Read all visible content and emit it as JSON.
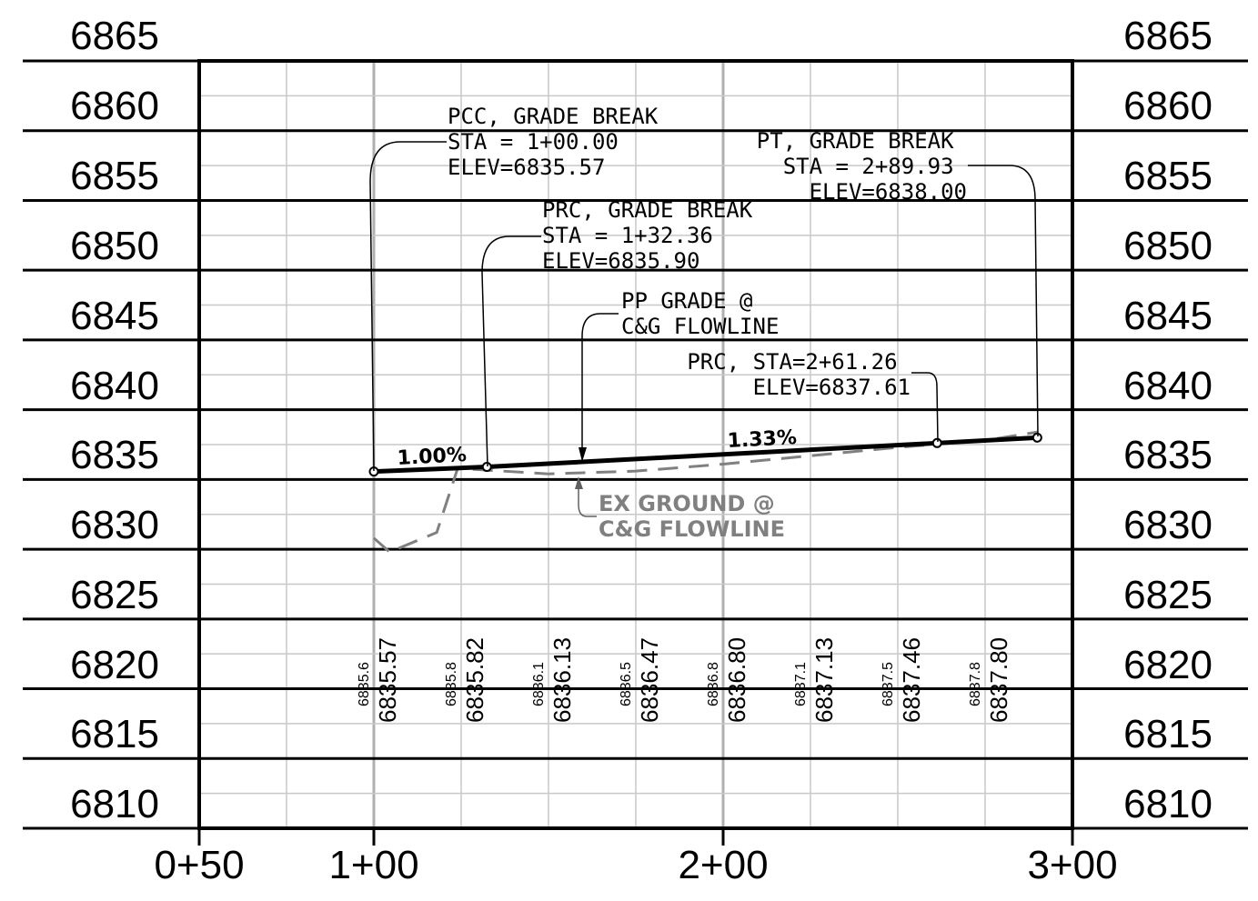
{
  "axes": {
    "elevations": [
      "6865",
      "6860",
      "6855",
      "6850",
      "6845",
      "6840",
      "6835",
      "6830",
      "6825",
      "6820",
      "6815",
      "6810"
    ],
    "stations": [
      "0+50",
      "1+00",
      "2+00",
      "3+00"
    ]
  },
  "annotations": {
    "pcc": {
      "lines": [
        "PCC, GRADE BREAK",
        "STA = 1+00.00",
        "ELEV=6835.57"
      ]
    },
    "pt": {
      "lines": [
        "PT, GRADE BREAK",
        "STA = 2+89.93",
        "ELEV=6838.00"
      ]
    },
    "prc1": {
      "lines": [
        "PRC, GRADE BREAK",
        "STA = 1+32.36",
        "ELEV=6835.90"
      ]
    },
    "pp_grade": {
      "lines": [
        "PP GRADE @",
        "C&G FLOWLINE"
      ]
    },
    "prc2": {
      "lines": [
        "PRC, STA=2+61.26",
        "ELEV=6837.61"
      ]
    },
    "ex_ground": {
      "lines": [
        "EX GROUND @",
        "C&G FLOWLINE"
      ]
    }
  },
  "grades": {
    "first": "1.00%",
    "second": "1.33%"
  },
  "elevation_table": [
    {
      "existing": "6835.6",
      "finished": "6835.57"
    },
    {
      "existing": "6835.8",
      "finished": "6835.82"
    },
    {
      "existing": "6836.1",
      "finished": "6836.13"
    },
    {
      "existing": "6836.5",
      "finished": "6836.47"
    },
    {
      "existing": "6836.8",
      "finished": "6836.80"
    },
    {
      "existing": "6837.1",
      "finished": "6837.13"
    },
    {
      "existing": "6837.5",
      "finished": "6837.46"
    },
    {
      "existing": "6837.8",
      "finished": "6837.80"
    }
  ],
  "profile": {
    "proposed_points": [
      {
        "sta": 100.0,
        "elev": 6835.57
      },
      {
        "sta": 132.36,
        "elev": 6835.9
      },
      {
        "sta": 261.26,
        "elev": 6837.61
      },
      {
        "sta": 289.93,
        "elev": 6838.0
      }
    ],
    "existing_points": [
      {
        "sta": 100.0,
        "elev": 6830.8
      },
      {
        "sta": 104.5,
        "elev": 6829.8
      },
      {
        "sta": 118.0,
        "elev": 6831.2
      },
      {
        "sta": 124.0,
        "elev": 6835.8
      },
      {
        "sta": 150.0,
        "elev": 6835.4
      },
      {
        "sta": 175.0,
        "elev": 6835.6
      },
      {
        "sta": 200.0,
        "elev": 6836.1
      },
      {
        "sta": 225.0,
        "elev": 6836.7
      },
      {
        "sta": 250.0,
        "elev": 6837.3
      },
      {
        "sta": 275.0,
        "elev": 6837.8
      },
      {
        "sta": 290.0,
        "elev": 6838.4
      }
    ],
    "proposed_color": "#000000",
    "existing_color": "#808080",
    "grid_color": "#c8c8c8"
  }
}
